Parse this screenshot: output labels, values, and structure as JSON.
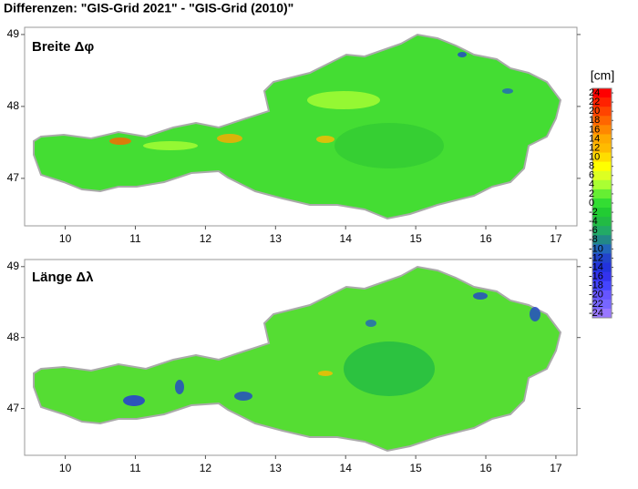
{
  "title": "Differenzen: \"GIS-Grid 2021\" - \"GIS-Grid (2010)\"",
  "panels": [
    {
      "label": "Breite Δφ",
      "xlim": [
        9.42,
        17.3
      ],
      "ylim": [
        46.34,
        49.1
      ],
      "xticks": [
        10,
        11,
        12,
        13,
        14,
        15,
        16,
        17
      ],
      "yticks": [
        47,
        48,
        49
      ]
    },
    {
      "label": "Länge Δλ",
      "xlim": [
        9.42,
        17.3
      ],
      "ylim": [
        46.34,
        49.1
      ],
      "xticks": [
        10,
        11,
        12,
        13,
        14,
        15,
        16,
        17
      ],
      "yticks": [
        47,
        48,
        49
      ]
    }
  ],
  "colorbar": {
    "unit": "[cm]",
    "clim": [
      -25,
      25
    ],
    "ticks": [
      24,
      22,
      20,
      18,
      16,
      14,
      12,
      10,
      8,
      6,
      4,
      2,
      0,
      -2,
      -4,
      -6,
      -8,
      -10,
      -12,
      -14,
      -16,
      -18,
      -20,
      -22,
      -24
    ],
    "colors": [
      "#ff0000",
      "#ff2200",
      "#ff4400",
      "#ff6600",
      "#ff8800",
      "#ffaa00",
      "#ffbb00",
      "#ffdd00",
      "#ffff00",
      "#ddff22",
      "#aaff33",
      "#66ee33",
      "#33dd33",
      "#22cc33",
      "#22bb44",
      "#22aa66",
      "#228888",
      "#2266bb",
      "#2244cc",
      "#2233dd",
      "#3333ee",
      "#4444ff",
      "#6655ff",
      "#7766ff",
      "#9977ff"
    ]
  }
}
